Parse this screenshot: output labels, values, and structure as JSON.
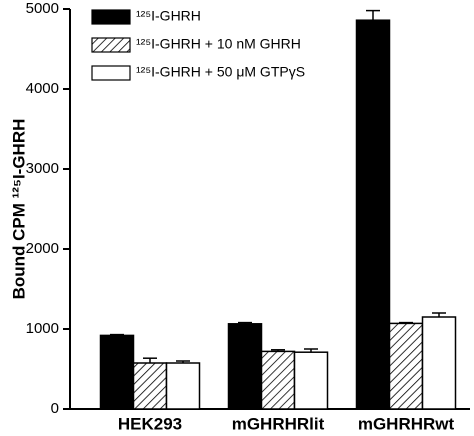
{
  "chart_data": {
    "type": "bar",
    "y_label": "Bound CPM ¹²⁵I-GHRH",
    "categories": [
      "HEK293",
      "mGHRHRlit",
      "mGHRHRwt"
    ],
    "series": [
      {
        "name": "¹²⁵I-GHRH",
        "color": "#000000",
        "hatch": false,
        "values": [
          920,
          1065,
          4860
        ],
        "errors": [
          10,
          15,
          120
        ]
      },
      {
        "name": "¹²⁵I-GHRH + 10 nM GHRH",
        "color": "#ffffff",
        "hatch": true,
        "values": [
          575,
          720,
          1070
        ],
        "errors": [
          60,
          20,
          10
        ]
      },
      {
        "name": "¹²⁵I-GHRH + 50 μM GTPγS",
        "color": "#ffffff",
        "hatch": false,
        "values": [
          575,
          710,
          1150
        ],
        "errors": [
          25,
          40,
          50
        ]
      }
    ],
    "ylim": [
      0,
      5000
    ],
    "yticks": [
      0,
      1000,
      2000,
      3000,
      4000,
      5000
    ],
    "legend": "upper-left"
  }
}
